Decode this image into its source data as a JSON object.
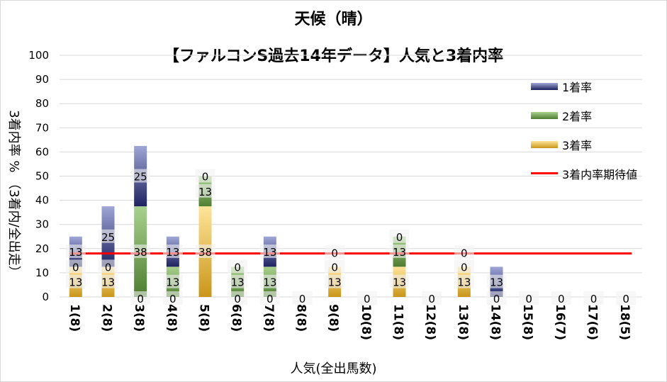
{
  "chart_data": {
    "type": "bar",
    "stacked": true,
    "title": "天候（晴）",
    "subtitle": "【ファルコンS過去14年データ】人気と3着内率",
    "xlabel": "人気(全出馬数)",
    "ylabel": "3着内率 %  （3着内/全出走）",
    "ylim": [
      0,
      100
    ],
    "yticks": [
      0,
      10,
      20,
      30,
      40,
      50,
      60,
      70,
      80,
      90,
      100
    ],
    "grid": true,
    "legend_position": "right",
    "categories": [
      "1(8)",
      "2(8)",
      "3(8)",
      "4(8)",
      "5(8)",
      "6(8)",
      "7(8)",
      "8(8)",
      "9(8)",
      "10(8)",
      "11(8)",
      "12(8)",
      "13(8)",
      "14(8)",
      "15(8)",
      "16(7)",
      "17(6)",
      "18(5)"
    ],
    "series": [
      {
        "name": "3着率",
        "color": "#c9961a",
        "values": [
          12.5,
          12.5,
          0,
          0,
          37.5,
          0,
          0,
          0,
          12.5,
          0,
          12.5,
          0,
          12.5,
          0,
          0,
          0,
          0,
          0
        ]
      },
      {
        "name": "2着率",
        "color": "#5a8a3a",
        "values": [
          0,
          0,
          37.5,
          12.5,
          12.5,
          12.5,
          12.5,
          0,
          0,
          0,
          12.5,
          0,
          0,
          0,
          0,
          0,
          0,
          0
        ]
      },
      {
        "name": "1着率",
        "color": "#2e3a86",
        "values": [
          12.5,
          25,
          25,
          12.5,
          0,
          0,
          12.5,
          0,
          0,
          0,
          0,
          0,
          0,
          12.5,
          0,
          0,
          0,
          0
        ]
      }
    ],
    "reference_line": {
      "name": "3着内率期待値",
      "color": "#ff0000",
      "value": 18
    }
  }
}
